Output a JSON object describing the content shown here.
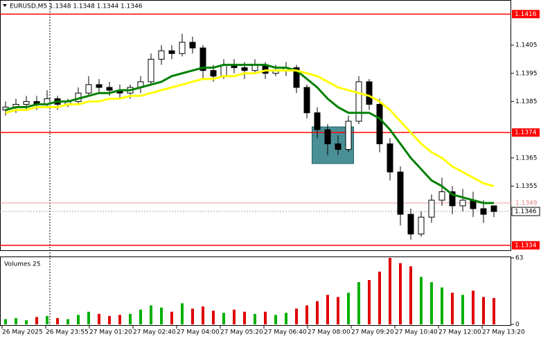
{
  "chart_data": {
    "type": "candlestick",
    "title": "EURUSD,M5  1.1348 1.1348 1.1344 1.1346",
    "ylim": [
      1.1332,
      1.1421
    ],
    "yticks": [
      1.1405,
      1.1395,
      1.1385,
      1.1365,
      1.1355
    ],
    "levels": [
      1.1416,
      1.1374,
      1.1334
    ],
    "level_color": "#ff0000",
    "bid_line": 1.1349,
    "current_price": 1.1346,
    "zone": [
      1.1363,
      1.1376
    ],
    "zone_color": "#4a8f96",
    "candles": [
      [
        1.1382,
        1.1385,
        1.138,
        1.1383
      ],
      [
        1.1383,
        1.1386,
        1.1381,
        1.1384
      ],
      [
        1.1384,
        1.1387,
        1.1382,
        1.1385
      ],
      [
        1.1385,
        1.1387,
        1.1382,
        1.1384
      ],
      [
        1.1384,
        1.1389,
        1.1383,
        1.1386
      ],
      [
        1.1386,
        1.1387,
        1.1382,
        1.1384
      ],
      [
        1.1384,
        1.1386,
        1.1383,
        1.1385
      ],
      [
        1.1385,
        1.139,
        1.1384,
        1.1388
      ],
      [
        1.1388,
        1.1394,
        1.1387,
        1.1391
      ],
      [
        1.1391,
        1.1393,
        1.1388,
        1.139
      ],
      [
        1.139,
        1.1392,
        1.1387,
        1.1389
      ],
      [
        1.1389,
        1.1391,
        1.1386,
        1.1388
      ],
      [
        1.1388,
        1.1391,
        1.1386,
        1.139
      ],
      [
        1.139,
        1.1394,
        1.1388,
        1.1392
      ],
      [
        1.1392,
        1.1402,
        1.1391,
        1.14
      ],
      [
        1.14,
        1.1405,
        1.1398,
        1.1403
      ],
      [
        1.1403,
        1.1405,
        1.14,
        1.1402
      ],
      [
        1.1402,
        1.1409,
        1.1401,
        1.1406
      ],
      [
        1.1406,
        1.1408,
        1.1402,
        1.1404
      ],
      [
        1.1404,
        1.1405,
        1.1393,
        1.1396
      ],
      [
        1.1396,
        1.1398,
        1.1392,
        1.1394
      ],
      [
        1.1394,
        1.14,
        1.1393,
        1.1398
      ],
      [
        1.1398,
        1.14,
        1.1395,
        1.1397
      ],
      [
        1.1397,
        1.1399,
        1.1393,
        1.1396
      ],
      [
        1.1396,
        1.14,
        1.1395,
        1.1398
      ],
      [
        1.1398,
        1.1399,
        1.1393,
        1.1395
      ],
      [
        1.1395,
        1.1398,
        1.1394,
        1.1396
      ],
      [
        1.1396,
        1.1399,
        1.1394,
        1.1397
      ],
      [
        1.1397,
        1.1398,
        1.1388,
        1.139
      ],
      [
        1.139,
        1.1391,
        1.1379,
        1.1381
      ],
      [
        1.1381,
        1.1383,
        1.1372,
        1.1375
      ],
      [
        1.1375,
        1.1377,
        1.1366,
        1.137
      ],
      [
        1.137,
        1.1373,
        1.1366,
        1.1368
      ],
      [
        1.1368,
        1.138,
        1.1367,
        1.1378
      ],
      [
        1.1378,
        1.1394,
        1.1377,
        1.1392
      ],
      [
        1.1392,
        1.1393,
        1.1382,
        1.1384
      ],
      [
        1.1384,
        1.1386,
        1.1367,
        1.137
      ],
      [
        1.137,
        1.1372,
        1.1357,
        1.136
      ],
      [
        1.136,
        1.1362,
        1.1341,
        1.1345
      ],
      [
        1.1345,
        1.1347,
        1.1336,
        1.1338
      ],
      [
        1.1338,
        1.1346,
        1.1337,
        1.1344
      ],
      [
        1.1344,
        1.1352,
        1.1342,
        1.135
      ],
      [
        1.135,
        1.1358,
        1.1348,
        1.1353
      ],
      [
        1.1353,
        1.1355,
        1.1345,
        1.1348
      ],
      [
        1.1348,
        1.1354,
        1.1346,
        1.135
      ],
      [
        1.135,
        1.1353,
        1.1344,
        1.1347
      ],
      [
        1.1347,
        1.135,
        1.1342,
        1.1345
      ],
      [
        1.1348,
        1.1348,
        1.1344,
        1.1346
      ]
    ],
    "series": [
      {
        "color": "#008000",
        "values": [
          1.1382,
          1.1383,
          1.1383,
          1.1384,
          1.1384,
          1.1385,
          1.1385,
          1.1386,
          1.1387,
          1.1388,
          1.1388,
          1.1389,
          1.1389,
          1.139,
          1.1391,
          1.1392,
          1.1394,
          1.1395,
          1.1396,
          1.1397,
          1.1397,
          1.1398,
          1.1398,
          1.1398,
          1.1398,
          1.1398,
          1.1397,
          1.1397,
          1.1396,
          1.1393,
          1.139,
          1.1386,
          1.1383,
          1.1381,
          1.1381,
          1.1381,
          1.1379,
          1.1375,
          1.137,
          1.1365,
          1.1361,
          1.1357,
          1.1355,
          1.1352,
          1.1351,
          1.135,
          1.1349,
          1.1349
        ]
      },
      {
        "color": "#ffff00",
        "values": [
          1.1381,
          1.1382,
          1.1382,
          1.1383,
          1.1383,
          1.1383,
          1.1384,
          1.1384,
          1.1385,
          1.1385,
          1.1386,
          1.1386,
          1.1387,
          1.1387,
          1.1388,
          1.1389,
          1.139,
          1.1391,
          1.1392,
          1.1393,
          1.1393,
          1.1394,
          1.1394,
          1.1395,
          1.1395,
          1.1396,
          1.1396,
          1.1396,
          1.1396,
          1.1395,
          1.1394,
          1.1392,
          1.139,
          1.1389,
          1.1388,
          1.1387,
          1.1385,
          1.1382,
          1.1378,
          1.1374,
          1.137,
          1.1367,
          1.1365,
          1.1362,
          1.136,
          1.1358,
          1.1356,
          1.1355
        ]
      }
    ],
    "volume_title": "Volumes 25",
    "volume_ylim": [
      0,
      63
    ],
    "volume_yticks": [
      63,
      0
    ],
    "volumes": [
      5,
      6,
      4,
      7,
      8,
      6,
      5,
      9,
      12,
      10,
      8,
      9,
      10,
      14,
      18,
      16,
      12,
      20,
      15,
      17,
      13,
      11,
      14,
      12,
      10,
      12,
      9,
      11,
      15,
      18,
      22,
      28,
      26,
      30,
      40,
      42,
      50,
      63,
      58,
      55,
      45,
      40,
      35,
      30,
      28,
      32,
      26,
      25
    ],
    "x_labels": [
      "26 May 2025",
      "26 May 23:55",
      "27 May 01:20",
      "27 May 02:40",
      "27 May 04:00",
      "27 May 05:20",
      "27 May 06:40",
      "27 May 08:00",
      "27 May 09:20",
      "27 May 10:40",
      "27 May 12:00",
      "27 May 13:20"
    ]
  }
}
